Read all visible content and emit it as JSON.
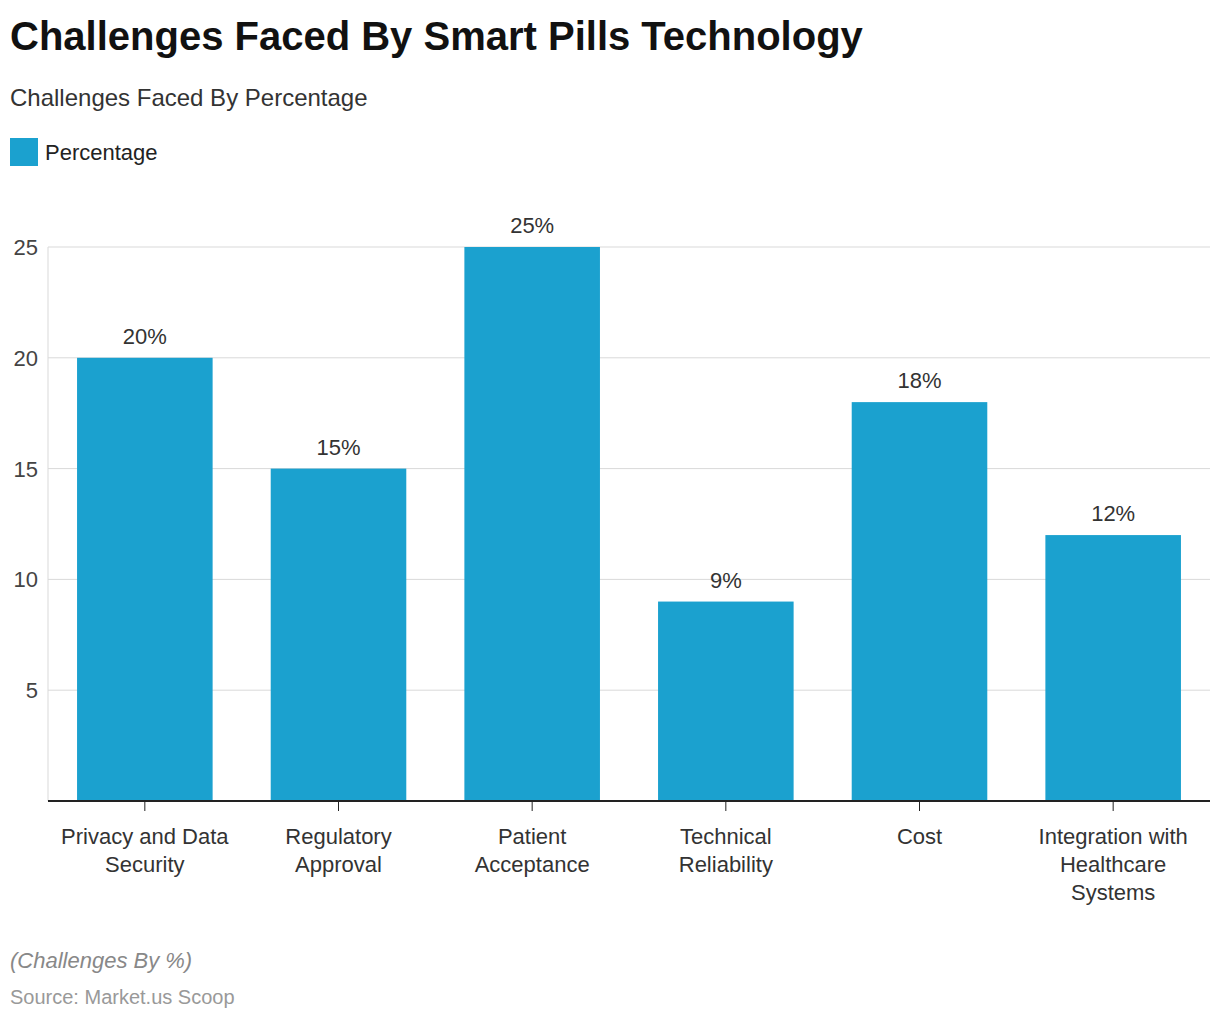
{
  "chart_data": {
    "type": "bar",
    "title": "Challenges Faced By Smart Pills Technology",
    "subtitle": "Challenges Faced By Percentage",
    "categories": [
      "Privacy and Data Security",
      "Regulatory Approval",
      "Patient Acceptance",
      "Technical Reliability",
      "Cost",
      "Integration with Healthcare Systems"
    ],
    "series": [
      {
        "name": "Percentage",
        "color": "#1ba1cf",
        "values": [
          20,
          15,
          25,
          9,
          18,
          12
        ],
        "value_labels": [
          "20%",
          "15%",
          "25%",
          "9%",
          "18%",
          "12%"
        ]
      }
    ],
    "ylim": [
      0,
      25
    ],
    "yticks": [
      5,
      10,
      15,
      20,
      25
    ],
    "grid": true,
    "legend": "top-left",
    "data_labels": true,
    "caption": "(Challenges By %)",
    "source": "Source: Market.us Scoop"
  }
}
